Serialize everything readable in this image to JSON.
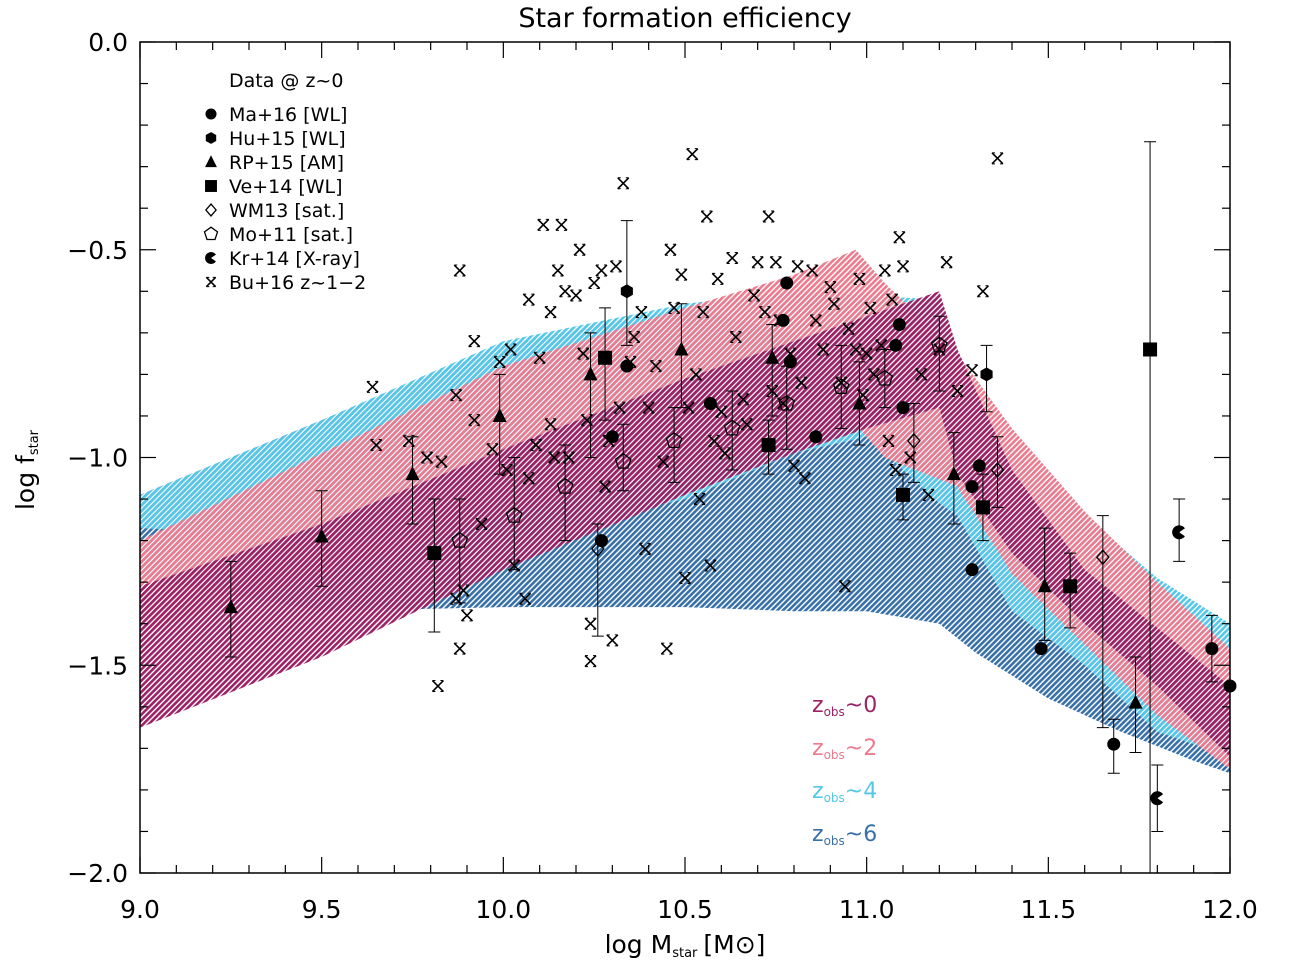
{
  "chart_data": {
    "type": "scatter",
    "title": "Star formation efficiency",
    "xlabel": {
      "main": "log M",
      "sub": "star",
      "tail": "[M⊙]"
    },
    "ylabel": {
      "main": "log f",
      "sub": "star"
    },
    "xlim": [
      9.0,
      12.0
    ],
    "ylim": [
      -2.0,
      0.0
    ],
    "xticks": [
      "9.0",
      "9.5",
      "10.0",
      "10.5",
      "11.0",
      "11.5",
      "12.0"
    ],
    "yticks": [
      "0.0",
      "−0.5",
      "−1.0",
      "−1.5",
      "−2.0"
    ],
    "legend": {
      "position": "top-left",
      "header": "Data @ z~0",
      "entries": [
        {
          "label": "Ma+16 [WL]",
          "marker": "filled-circle"
        },
        {
          "label": "Hu+15 [WL]",
          "marker": "filled-hexagon"
        },
        {
          "label": "RP+15 [AM]",
          "marker": "filled-triangle"
        },
        {
          "label": "Ve+14 [WL]",
          "marker": "filled-square"
        },
        {
          "label": "WM13 [sat.]",
          "marker": "open-diamond"
        },
        {
          "label": "Mo+11 [sat.]",
          "marker": "open-pentagon"
        },
        {
          "label": "Kr+14 [X-ray]",
          "marker": "pacman"
        },
        {
          "label": "Bu+16 z~1−2",
          "marker": "cross-box"
        }
      ]
    },
    "bands": [
      {
        "name": "z_obs~0",
        "color": "#9a2265",
        "x": [
          9.0,
          9.5,
          10.0,
          10.5,
          10.8,
          11.0,
          11.2,
          11.25,
          11.4,
          11.6,
          11.8,
          12.0
        ],
        "upper": [
          -1.31,
          -1.16,
          -0.98,
          -0.81,
          -0.72,
          -0.66,
          -0.6,
          -0.74,
          -1.03,
          -1.27,
          -1.41,
          -1.55
        ],
        "lower": [
          -1.65,
          -1.48,
          -1.27,
          -1.09,
          -0.99,
          -0.93,
          -0.88,
          -1.04,
          -1.23,
          -1.4,
          -1.55,
          -1.72
        ]
      },
      {
        "name": "z_obs~2",
        "color": "#ee7a8e",
        "x": [
          9.0,
          9.5,
          10.0,
          10.5,
          10.8,
          10.97,
          11.05,
          11.25,
          11.4,
          11.6,
          11.8,
          12.0
        ],
        "upper": [
          -1.2,
          -0.99,
          -0.78,
          -0.64,
          -0.56,
          -0.5,
          -0.58,
          -0.75,
          -0.93,
          -1.13,
          -1.3,
          -1.46
        ],
        "lower": [
          -1.42,
          -1.28,
          -1.14,
          -1.02,
          -0.97,
          -0.92,
          -1.0,
          -1.07,
          -1.28,
          -1.45,
          -1.62,
          -1.75
        ]
      },
      {
        "name": "z_obs~4",
        "color": "#55c8ea",
        "x": [
          9.0,
          9.5,
          10.0,
          10.5,
          10.8,
          11.0,
          11.2,
          11.25,
          11.4,
          11.6,
          11.8,
          12.0
        ],
        "upper": [
          -1.09,
          -0.91,
          -0.72,
          -0.63,
          -0.6,
          -0.61,
          -0.62,
          -0.8,
          -0.98,
          -1.14,
          -1.29,
          -1.4
        ],
        "lower": [
          -1.17,
          -1.19,
          -1.2,
          -1.1,
          -0.99,
          -0.95,
          -1.11,
          -1.14,
          -1.37,
          -1.5,
          -1.66,
          -1.72
        ]
      },
      {
        "name": "z_obs~6",
        "color": "#3870a8",
        "x": [
          9.0,
          9.5,
          10.0,
          10.5,
          10.8,
          11.0,
          11.2,
          11.3,
          11.5,
          11.7,
          11.9,
          12.0
        ],
        "upper": [
          -1.09,
          -0.91,
          -0.73,
          -0.64,
          -0.7,
          -0.81,
          -0.89,
          -1.05,
          -1.25,
          -1.4,
          -1.53,
          -1.62
        ],
        "lower": [
          -1.29,
          -1.37,
          -1.36,
          -1.36,
          -1.37,
          -1.37,
          -1.4,
          -1.47,
          -1.58,
          -1.66,
          -1.73,
          -1.76
        ]
      }
    ],
    "band_labels": [
      {
        "main": "z",
        "sub": "obs",
        "tail": "~0",
        "color": "#9a2265"
      },
      {
        "main": "z",
        "sub": "obs",
        "tail": "~2",
        "color": "#ee7a8e"
      },
      {
        "main": "z",
        "sub": "obs",
        "tail": "~4",
        "color": "#55c8ea"
      },
      {
        "main": "z",
        "sub": "obs",
        "tail": "~6",
        "color": "#3870a8"
      }
    ],
    "series": [
      {
        "name": "Ma+16 [WL]",
        "marker": "filled-circle",
        "points": [
          [
            10.27,
            -1.2,
            null,
            null
          ],
          [
            10.3,
            -0.95,
            null,
            null
          ],
          [
            10.34,
            -0.78,
            null,
            null
          ],
          [
            10.57,
            -0.87,
            null,
            null
          ],
          [
            10.77,
            -0.67,
            null,
            null
          ],
          [
            10.78,
            -0.58,
            null,
            null
          ],
          [
            10.79,
            -0.77,
            null,
            null
          ],
          [
            10.86,
            -0.95,
            null,
            null
          ],
          [
            11.08,
            -0.73,
            null,
            null
          ],
          [
            11.09,
            -0.68,
            null,
            null
          ],
          [
            11.1,
            -0.88,
            null,
            null
          ],
          [
            11.29,
            -1.07,
            null,
            null
          ],
          [
            11.29,
            -1.27,
            null,
            null
          ],
          [
            11.31,
            -1.02,
            null,
            null
          ],
          [
            11.48,
            -1.46,
            null,
            null
          ],
          [
            11.68,
            -1.69,
            -1.76,
            -1.63
          ],
          [
            11.95,
            -1.46,
            -1.54,
            -1.38
          ],
          [
            12.0,
            -1.55,
            null,
            null
          ]
        ]
      },
      {
        "name": "Hu+15 [WL]",
        "marker": "filled-hexagon",
        "points": [
          [
            10.34,
            -0.6,
            -0.73,
            -0.43
          ],
          [
            11.33,
            -0.8,
            -0.89,
            -0.73
          ]
        ]
      },
      {
        "name": "RP+15 [AM]",
        "marker": "filled-triangle",
        "points": [
          [
            9.25,
            -1.36,
            -1.48,
            -1.25
          ],
          [
            9.5,
            -1.19,
            -1.31,
            -1.08
          ],
          [
            9.75,
            -1.04,
            -1.16,
            -0.95
          ],
          [
            9.99,
            -0.9,
            -1.04,
            -0.8
          ],
          [
            10.24,
            -0.8,
            -1.0,
            -0.7
          ],
          [
            10.49,
            -0.74,
            -0.88,
            -0.63
          ],
          [
            10.74,
            -0.76,
            -0.9,
            -0.68
          ],
          [
            10.98,
            -0.87,
            -0.97,
            -0.77
          ],
          [
            11.24,
            -1.04,
            -1.16,
            -0.94
          ],
          [
            11.49,
            -1.31,
            -1.44,
            -1.17
          ],
          [
            11.74,
            -1.59,
            -1.71,
            -1.48
          ]
        ]
      },
      {
        "name": "Ve+14 [WL]",
        "marker": "filled-square",
        "points": [
          [
            9.81,
            -1.23,
            -1.42,
            -1.1
          ],
          [
            10.28,
            -0.76,
            -0.91,
            -0.64
          ],
          [
            10.73,
            -0.97,
            -1.04,
            -0.91
          ],
          [
            11.1,
            -1.09,
            -1.15,
            -1.04
          ],
          [
            11.32,
            -1.12,
            -1.2,
            -1.04
          ],
          [
            11.56,
            -1.31,
            -1.41,
            -1.23
          ],
          [
            11.78,
            -0.74,
            -2.0,
            -0.24
          ]
        ]
      },
      {
        "name": "WM13 [sat.]",
        "marker": "open-diamond",
        "points": [
          [
            10.26,
            -1.22,
            -1.43,
            -1.16
          ],
          [
            11.13,
            -0.96,
            -1.06,
            -0.87
          ],
          [
            11.36,
            -1.03,
            -1.12,
            -0.95
          ],
          [
            11.65,
            -1.24,
            -1.65,
            -1.14
          ]
        ]
      },
      {
        "name": "Mo+11 [sat.]",
        "marker": "open-pentagon",
        "points": [
          [
            9.88,
            -1.2,
            -1.35,
            -1.1
          ],
          [
            10.03,
            -1.14,
            -1.27,
            -1.0
          ],
          [
            10.17,
            -1.07,
            -1.2,
            -0.97
          ],
          [
            10.33,
            -1.01,
            -1.08,
            -0.92
          ],
          [
            10.47,
            -0.96,
            -1.06,
            -0.88
          ],
          [
            10.63,
            -0.93,
            -1.03,
            -0.84
          ],
          [
            10.78,
            -0.87,
            -0.98,
            -0.78
          ],
          [
            10.93,
            -0.83,
            -0.93,
            -0.73
          ],
          [
            11.05,
            -0.81,
            -0.88,
            -0.74
          ],
          [
            11.2,
            -0.73,
            -0.84,
            -0.66
          ]
        ]
      },
      {
        "name": "Kr+14 [X-ray]",
        "marker": "pacman",
        "points": [
          [
            11.8,
            -1.82,
            -1.9,
            -1.74
          ],
          [
            11.86,
            -1.18,
            -1.25,
            -1.1
          ]
        ]
      },
      {
        "name": "Bu+16 z~1−2",
        "marker": "cross-box",
        "points": [
          [
            9.64,
            -0.83
          ],
          [
            9.65,
            -0.97
          ],
          [
            9.74,
            -0.96
          ],
          [
            9.79,
            -1.0
          ],
          [
            9.82,
            -1.55
          ],
          [
            9.83,
            -1.01
          ],
          [
            9.87,
            -1.34
          ],
          [
            9.87,
            -0.85
          ],
          [
            9.88,
            -1.46
          ],
          [
            9.88,
            -0.55
          ],
          [
            9.89,
            -1.32
          ],
          [
            9.9,
            -1.38
          ],
          [
            9.92,
            -0.91
          ],
          [
            9.92,
            -0.72
          ],
          [
            9.94,
            -1.16
          ],
          [
            9.97,
            -0.98
          ],
          [
            9.99,
            -0.77
          ],
          [
            10.01,
            -1.03
          ],
          [
            10.02,
            -0.74
          ],
          [
            10.03,
            -1.26
          ],
          [
            10.06,
            -1.34
          ],
          [
            10.07,
            -1.05
          ],
          [
            10.07,
            -0.62
          ],
          [
            10.09,
            -0.97
          ],
          [
            10.1,
            -0.76
          ],
          [
            10.11,
            -0.44
          ],
          [
            10.13,
            -0.92
          ],
          [
            10.13,
            -0.65
          ],
          [
            10.14,
            -1.0
          ],
          [
            10.15,
            -0.55
          ],
          [
            10.16,
            -0.44
          ],
          [
            10.17,
            -0.6
          ],
          [
            10.18,
            -1.0
          ],
          [
            10.2,
            -0.61
          ],
          [
            10.21,
            -0.5
          ],
          [
            10.22,
            -0.75
          ],
          [
            10.23,
            -0.91
          ],
          [
            10.24,
            -1.4
          ],
          [
            10.24,
            -1.49
          ],
          [
            10.25,
            -0.58
          ],
          [
            10.27,
            -0.55
          ],
          [
            10.28,
            -1.07
          ],
          [
            10.29,
            -0.96
          ],
          [
            10.3,
            -1.44
          ],
          [
            10.31,
            -0.54
          ],
          [
            10.32,
            -0.88
          ],
          [
            10.33,
            -0.34
          ],
          [
            10.35,
            -0.77
          ],
          [
            10.36,
            -0.71
          ],
          [
            10.38,
            -0.65
          ],
          [
            10.39,
            -1.22
          ],
          [
            10.4,
            -0.88
          ],
          [
            10.42,
            -0.78
          ],
          [
            10.44,
            -1.01
          ],
          [
            10.45,
            -1.46
          ],
          [
            10.46,
            -0.5
          ],
          [
            10.47,
            -0.64
          ],
          [
            10.49,
            -0.56
          ],
          [
            10.5,
            -1.29
          ],
          [
            10.51,
            -0.88
          ],
          [
            10.52,
            -0.27
          ],
          [
            10.53,
            -0.8
          ],
          [
            10.54,
            -1.1
          ],
          [
            10.55,
            -0.65
          ],
          [
            10.56,
            -0.42
          ],
          [
            10.57,
            -1.26
          ],
          [
            10.58,
            -0.96
          ],
          [
            10.59,
            -0.57
          ],
          [
            10.6,
            -0.89
          ],
          [
            10.61,
            -0.99
          ],
          [
            10.63,
            -0.52
          ],
          [
            10.64,
            -0.71
          ],
          [
            10.66,
            -0.86
          ],
          [
            10.67,
            -0.92
          ],
          [
            10.69,
            -0.61
          ],
          [
            10.7,
            -0.53
          ],
          [
            10.72,
            -0.65
          ],
          [
            10.73,
            -0.42
          ],
          [
            10.74,
            -0.84
          ],
          [
            10.75,
            -0.53
          ],
          [
            10.76,
            -0.67
          ],
          [
            10.77,
            -0.87
          ],
          [
            10.79,
            -0.75
          ],
          [
            10.8,
            -1.02
          ],
          [
            10.81,
            -0.54
          ],
          [
            10.82,
            -0.82
          ],
          [
            10.83,
            -1.05
          ],
          [
            10.85,
            -0.55
          ],
          [
            10.86,
            -0.67
          ],
          [
            10.88,
            -0.74
          ],
          [
            10.9,
            -0.59
          ],
          [
            10.91,
            -0.63
          ],
          [
            10.93,
            -0.82
          ],
          [
            10.94,
            -1.31
          ],
          [
            10.95,
            -0.69
          ],
          [
            10.97,
            -0.74
          ],
          [
            10.98,
            -0.57
          ],
          [
            10.99,
            -0.85
          ],
          [
            11.0,
            -0.75
          ],
          [
            11.01,
            -0.64
          ],
          [
            11.02,
            -0.8
          ],
          [
            11.04,
            -0.73
          ],
          [
            11.05,
            -0.55
          ],
          [
            11.06,
            -0.96
          ],
          [
            11.07,
            -0.62
          ],
          [
            11.08,
            -1.03
          ],
          [
            11.09,
            -0.47
          ],
          [
            11.1,
            -0.54
          ],
          [
            11.12,
            -1.0
          ],
          [
            11.15,
            -0.8
          ],
          [
            11.17,
            -1.09
          ],
          [
            11.2,
            -0.74
          ],
          [
            11.22,
            -0.53
          ],
          [
            11.25,
            -0.84
          ],
          [
            11.29,
            -0.79
          ],
          [
            11.32,
            -0.6
          ],
          [
            11.36,
            -0.28
          ]
        ]
      }
    ]
  }
}
